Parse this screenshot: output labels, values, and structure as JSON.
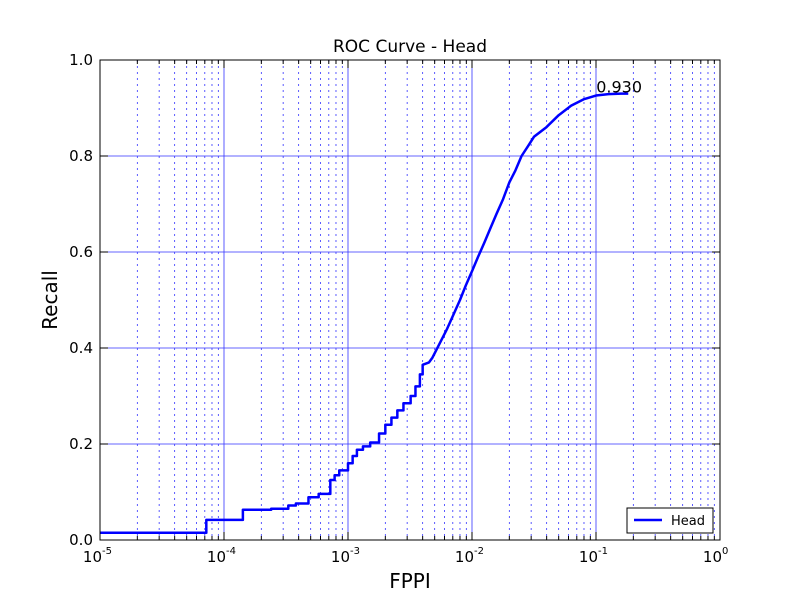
{
  "chart_data": {
    "type": "line",
    "title": "ROC Curve - Head",
    "xlabel": "FPPI",
    "ylabel": "Recall",
    "xscale": "log",
    "xlim": [
      1e-05,
      1
    ],
    "ylim": [
      0.0,
      1.0
    ],
    "grid": true,
    "x_tick_labels": [
      {
        "base": "10",
        "exp": "-5"
      },
      {
        "base": "10",
        "exp": "-4"
      },
      {
        "base": "10",
        "exp": "-3"
      },
      {
        "base": "10",
        "exp": "-2"
      },
      {
        "base": "10",
        "exp": "-1"
      },
      {
        "base": "10",
        "exp": "0"
      }
    ],
    "y_ticks": [
      "0.0",
      "0.2",
      "0.4",
      "0.6",
      "0.8",
      "1.0"
    ],
    "legend": {
      "position": "lower-right",
      "entries": [
        "Head"
      ]
    },
    "annotation": "0.930",
    "series": [
      {
        "name": "Head",
        "color": "#0000ff",
        "step": true,
        "points": [
          [
            1e-05,
            0.015
          ],
          [
            7.2e-05,
            0.015
          ],
          [
            7.2e-05,
            0.042
          ],
          [
            0.000142,
            0.042
          ],
          [
            0.000142,
            0.063
          ],
          [
            0.00024,
            0.063
          ],
          [
            0.00024,
            0.065
          ],
          [
            0.00033,
            0.065
          ],
          [
            0.00033,
            0.072
          ],
          [
            0.00038,
            0.072
          ],
          [
            0.00038,
            0.076
          ],
          [
            0.00048,
            0.076
          ],
          [
            0.00048,
            0.089
          ],
          [
            0.00058,
            0.089
          ],
          [
            0.00058,
            0.096
          ],
          [
            0.00072,
            0.096
          ],
          [
            0.00072,
            0.125
          ],
          [
            0.00078,
            0.125
          ],
          [
            0.00078,
            0.135
          ],
          [
            0.00085,
            0.135
          ],
          [
            0.00085,
            0.145
          ],
          [
            0.001,
            0.145
          ],
          [
            0.001,
            0.16
          ],
          [
            0.00109,
            0.16
          ],
          [
            0.00109,
            0.175
          ],
          [
            0.00118,
            0.175
          ],
          [
            0.00118,
            0.188
          ],
          [
            0.00132,
            0.188
          ],
          [
            0.00132,
            0.195
          ],
          [
            0.00151,
            0.195
          ],
          [
            0.00151,
            0.203
          ],
          [
            0.00178,
            0.203
          ],
          [
            0.00178,
            0.222
          ],
          [
            0.002,
            0.222
          ],
          [
            0.002,
            0.24
          ],
          [
            0.00224,
            0.24
          ],
          [
            0.00224,
            0.255
          ],
          [
            0.0025,
            0.255
          ],
          [
            0.0025,
            0.27
          ],
          [
            0.0028,
            0.27
          ],
          [
            0.0028,
            0.285
          ],
          [
            0.0032,
            0.285
          ],
          [
            0.0032,
            0.3
          ],
          [
            0.0035,
            0.3
          ],
          [
            0.0035,
            0.32
          ],
          [
            0.0038,
            0.32
          ],
          [
            0.0038,
            0.345
          ],
          [
            0.004,
            0.345
          ],
          [
            0.004,
            0.365
          ],
          [
            0.0045,
            0.37
          ],
          [
            0.0048,
            0.38
          ],
          [
            0.0055,
            0.41
          ],
          [
            0.0063,
            0.44
          ],
          [
            0.0071,
            0.47
          ],
          [
            0.008,
            0.5
          ],
          [
            0.0089,
            0.53
          ],
          [
            0.01,
            0.56
          ],
          [
            0.0112,
            0.59
          ],
          [
            0.0126,
            0.62
          ],
          [
            0.0141,
            0.65
          ],
          [
            0.0158,
            0.68
          ],
          [
            0.0178,
            0.71
          ],
          [
            0.02,
            0.745
          ],
          [
            0.0224,
            0.77
          ],
          [
            0.0251,
            0.8
          ],
          [
            0.0282,
            0.82
          ],
          [
            0.0316,
            0.84
          ],
          [
            0.0398,
            0.86
          ],
          [
            0.05,
            0.885
          ],
          [
            0.0631,
            0.905
          ],
          [
            0.0794,
            0.918
          ],
          [
            0.1,
            0.926
          ],
          [
            0.126,
            0.929
          ],
          [
            0.159,
            0.93
          ],
          [
            0.182,
            0.93
          ]
        ]
      }
    ]
  }
}
